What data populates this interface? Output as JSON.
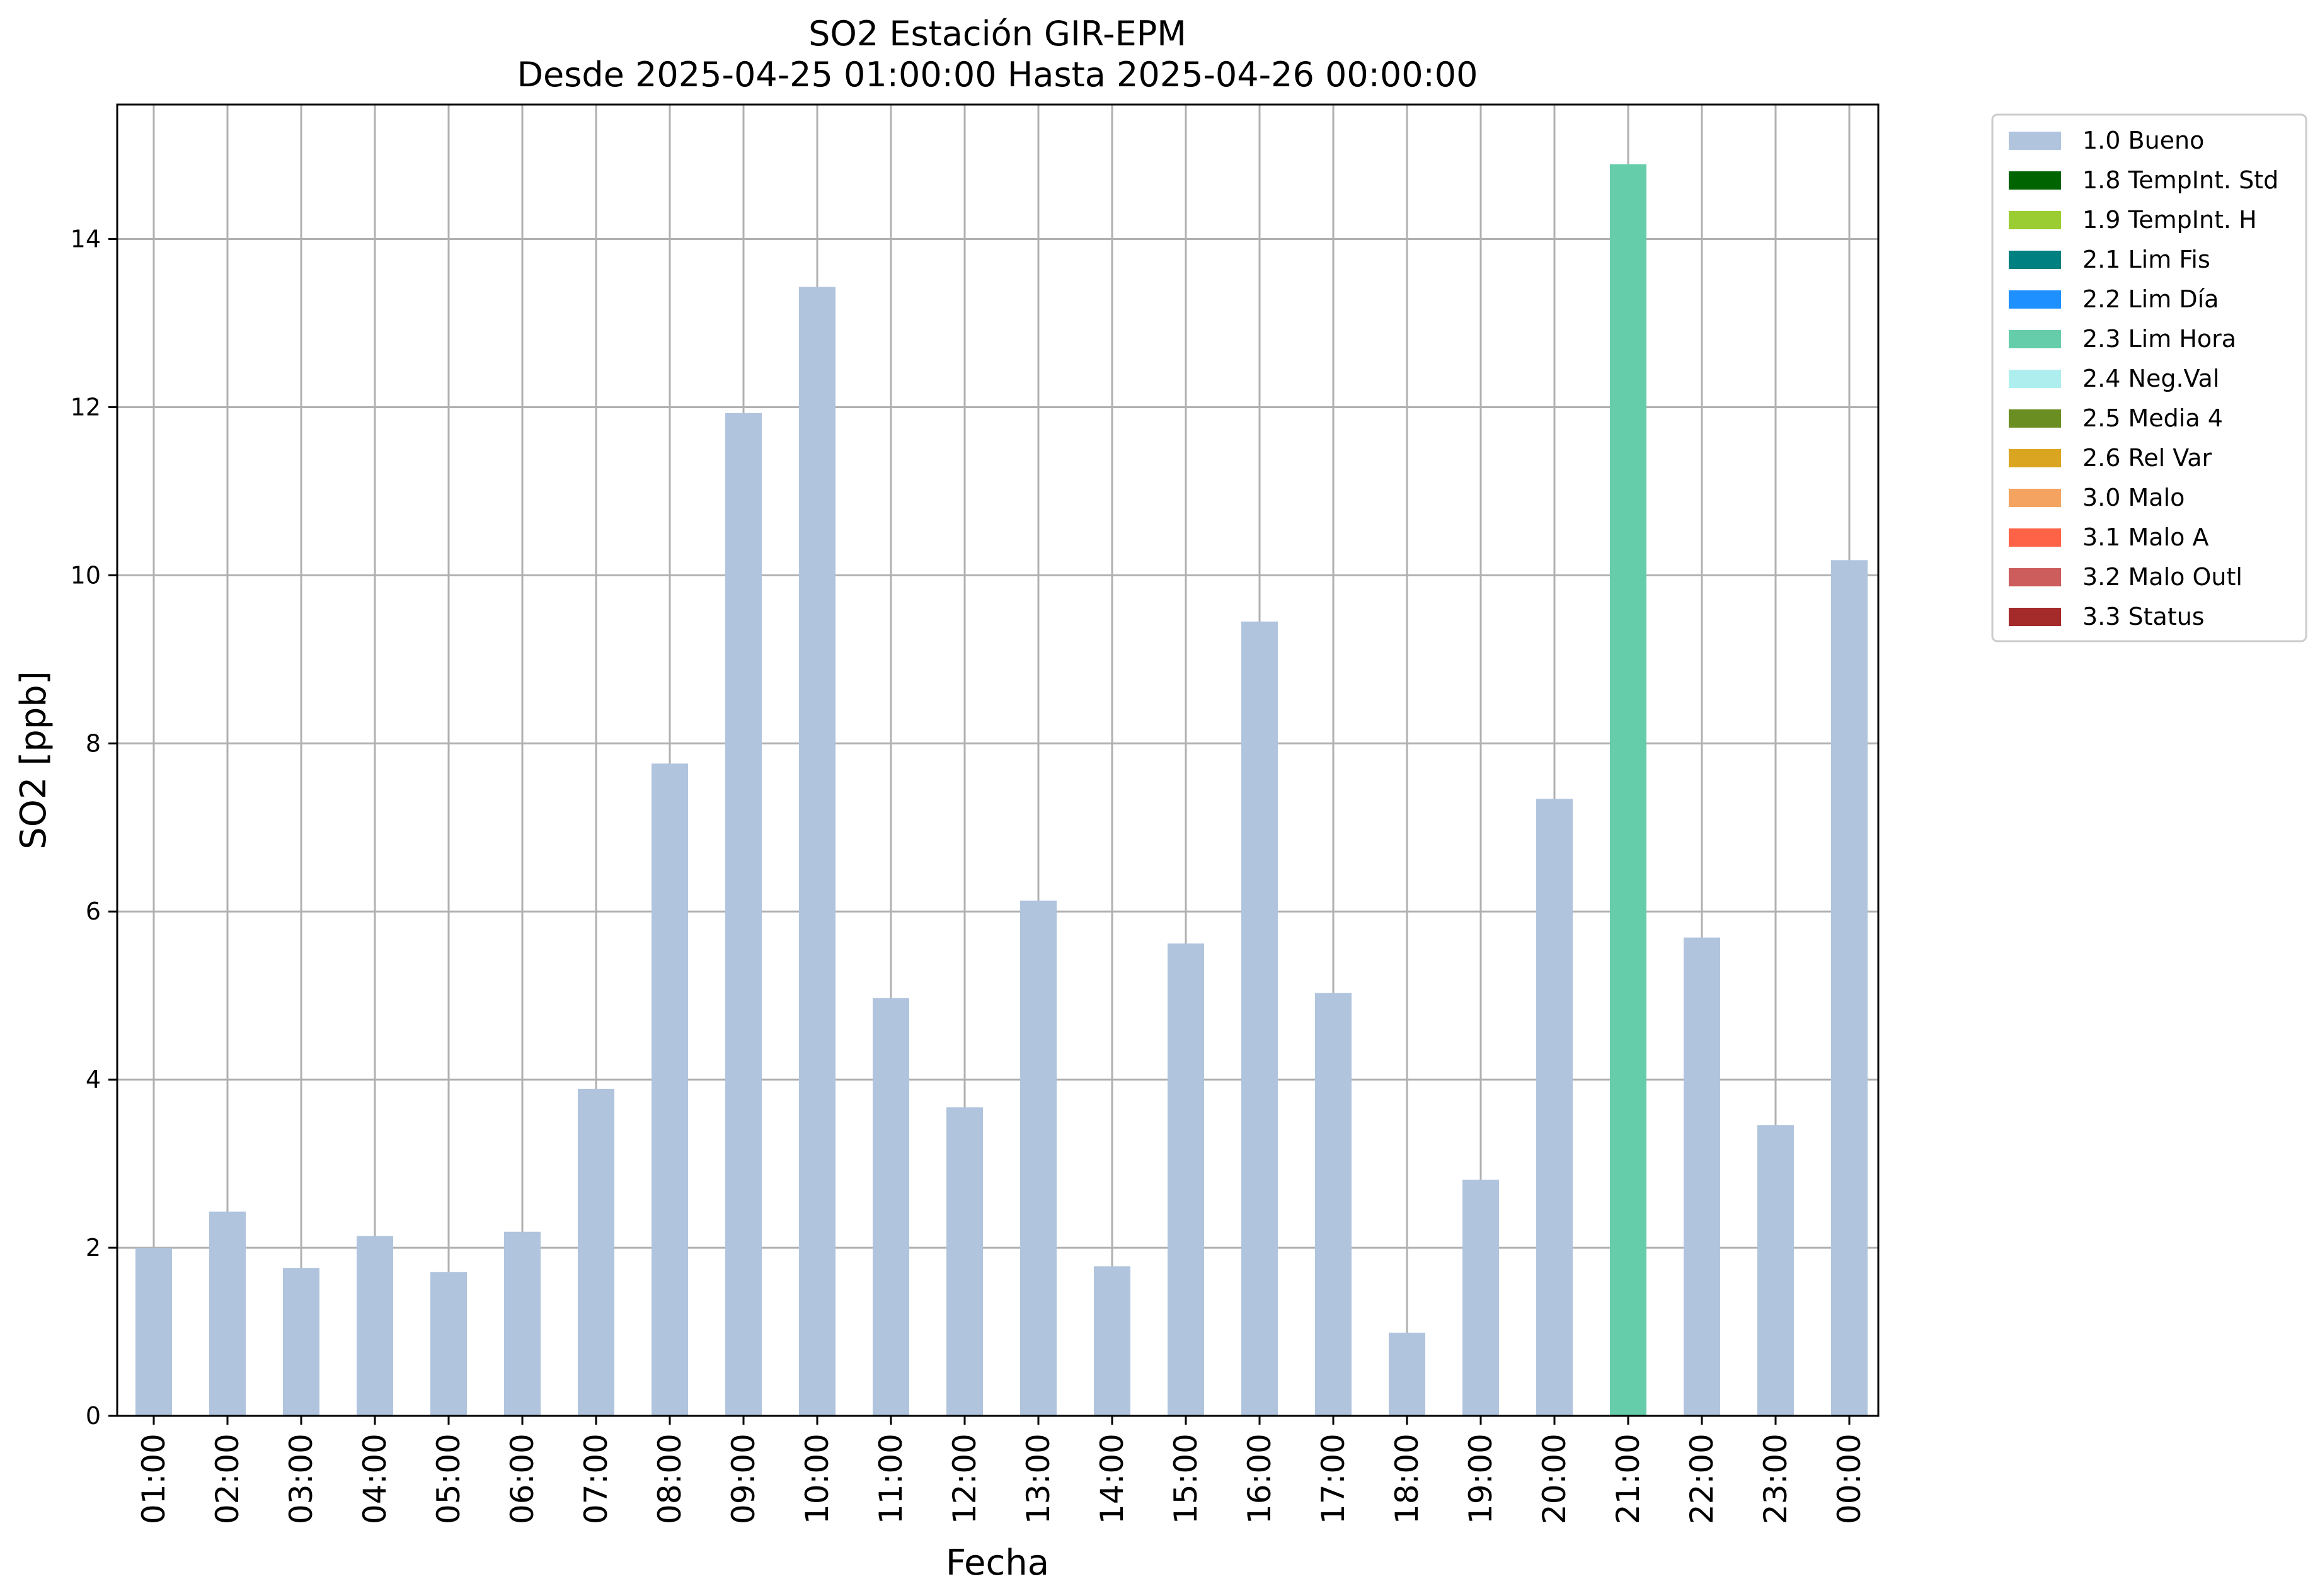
{
  "chart_data": {
    "type": "bar",
    "title": "SO2 Estación GIR-EPM",
    "subtitle": "Desde 2025-04-25 01:00:00 Hasta 2025-04-26 00:00:00",
    "xlabel": "Fecha",
    "ylabel": "SO2 [ppb]",
    "ylim": [
      0,
      15.6
    ],
    "yticks": [
      "0",
      "2",
      "4",
      "6",
      "8",
      "10",
      "12",
      "14"
    ],
    "grid": true,
    "legend_position": "outside-top-right",
    "categories": [
      "01:00",
      "02:00",
      "03:00",
      "04:00",
      "05:00",
      "06:00",
      "07:00",
      "08:00",
      "09:00",
      "10:00",
      "11:00",
      "12:00",
      "13:00",
      "14:00",
      "15:00",
      "16:00",
      "17:00",
      "18:00",
      "19:00",
      "20:00",
      "21:00",
      "22:00",
      "23:00",
      "00:00"
    ],
    "values": [
      2.0,
      2.43,
      1.76,
      2.14,
      1.71,
      2.19,
      3.89,
      7.76,
      11.93,
      13.43,
      4.97,
      3.67,
      6.13,
      1.78,
      5.62,
      9.45,
      5.03,
      0.99,
      2.81,
      7.34,
      14.89,
      5.69,
      3.46,
      10.18
    ],
    "flags": [
      "1.0 Bueno",
      "1.0 Bueno",
      "1.0 Bueno",
      "1.0 Bueno",
      "1.0 Bueno",
      "1.0 Bueno",
      "1.0 Bueno",
      "1.0 Bueno",
      "1.0 Bueno",
      "1.0 Bueno",
      "1.0 Bueno",
      "1.0 Bueno",
      "1.0 Bueno",
      "1.0 Bueno",
      "1.0 Bueno",
      "1.0 Bueno",
      "1.0 Bueno",
      "1.0 Bueno",
      "1.0 Bueno",
      "1.0 Bueno",
      "2.3 Lim Hora",
      "1.0 Bueno",
      "1.0 Bueno",
      "1.0 Bueno"
    ],
    "legend": [
      {
        "label": "1.0 Bueno",
        "color": "#b0c4de"
      },
      {
        "label": "1.8 TempInt. Std",
        "color": "#006400"
      },
      {
        "label": "1.9 TempInt. H",
        "color": "#9acd32"
      },
      {
        "label": "2.1 Lim Fis",
        "color": "#008080"
      },
      {
        "label": "2.2 Lim Día",
        "color": "#1e90ff"
      },
      {
        "label": "2.3 Lim Hora",
        "color": "#66cdaa"
      },
      {
        "label": "2.4 Neg.Val",
        "color": "#afeeee"
      },
      {
        "label": "2.5 Media 4",
        "color": "#6b8e23"
      },
      {
        "label": "2.6 Rel Var",
        "color": "#daa520"
      },
      {
        "label": "3.0 Malo",
        "color": "#f4a460"
      },
      {
        "label": "3.1 Malo A",
        "color": "#ff6347"
      },
      {
        "label": "3.2 Malo Outl",
        "color": "#cd5c5c"
      },
      {
        "label": "3.3 Status",
        "color": "#a52a2a"
      }
    ]
  }
}
